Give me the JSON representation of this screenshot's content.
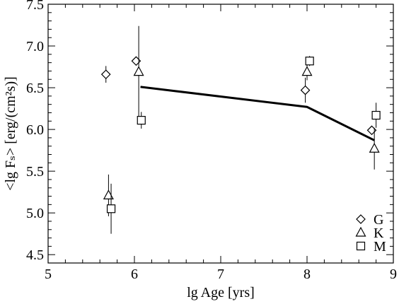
{
  "chart_data": {
    "type": "scatter",
    "xlabel": "lg Age [yrs]",
    "ylabel": "<lg Fₛ> [erg/(cm²s)]",
    "xlim": [
      5,
      9
    ],
    "ylim": [
      4.4,
      7.5
    ],
    "x_ticks": [
      "5",
      "6",
      "7",
      "8",
      "9"
    ],
    "y_ticks": [
      "4.5",
      "5.0",
      "5.5",
      "6.0",
      "6.5",
      "7.0",
      "7.5"
    ],
    "grid": false,
    "legend_position": "bottom-right",
    "series": [
      {
        "name": "G",
        "marker": "diamond",
        "points": [
          {
            "x": 5.67,
            "y": 6.66,
            "err": 0.1
          },
          {
            "x": 6.02,
            "y": 6.82,
            "err": 0.0
          },
          {
            "x": 7.98,
            "y": 6.47,
            "err": 0.15
          },
          {
            "x": 8.75,
            "y": 5.99,
            "err": 0.04
          }
        ]
      },
      {
        "name": "K",
        "marker": "triangle",
        "points": [
          {
            "x": 5.7,
            "y": 5.21,
            "err": 0.25
          },
          {
            "x": 6.05,
            "y": 6.69,
            "err": 0.55
          },
          {
            "x": 8.0,
            "y": 6.69,
            "err": 0.1
          },
          {
            "x": 8.78,
            "y": 5.77,
            "err": 0.25
          }
        ]
      },
      {
        "name": "M",
        "marker": "square",
        "points": [
          {
            "x": 5.73,
            "y": 5.05,
            "err": 0.3
          },
          {
            "x": 6.08,
            "y": 6.11,
            "err": 0.1
          },
          {
            "x": 8.03,
            "y": 6.82,
            "err": 0.06
          },
          {
            "x": 8.8,
            "y": 6.17,
            "err": 0.15
          }
        ]
      }
    ],
    "line": {
      "x": [
        6.07,
        8.0,
        8.78
      ],
      "y": [
        6.51,
        6.27,
        5.87
      ]
    }
  }
}
